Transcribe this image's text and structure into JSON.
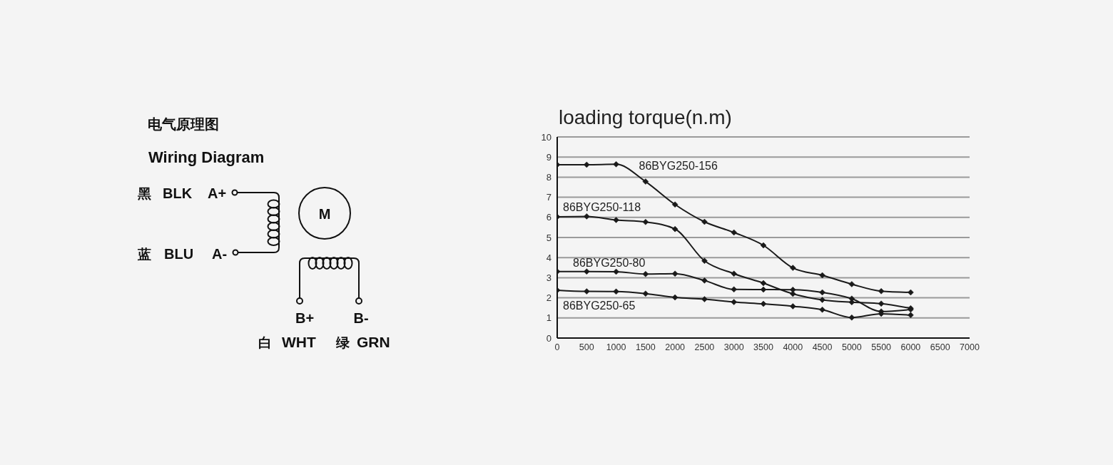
{
  "chart_data": [
    {
      "type": "other",
      "title": "电气原理图",
      "subtitle": "Wiring Diagram",
      "annotations": [
        "黑",
        "BLK",
        "A+",
        "蓝",
        "BLU",
        "A-",
        "M",
        "B+",
        "B-",
        "白",
        "WHT",
        "绿",
        "GRN"
      ]
    },
    {
      "type": "line",
      "title": "loading torque(n.m)",
      "x": [
        0,
        500,
        1000,
        1500,
        2000,
        2500,
        3000,
        3500,
        4000,
        4500,
        5000,
        5500,
        6000
      ],
      "xlim": [
        0,
        7000
      ],
      "xticks": [
        0,
        500,
        1000,
        1500,
        2000,
        2500,
        3000,
        3500,
        4000,
        4500,
        5000,
        5500,
        6000,
        6500,
        7000
      ],
      "ylim": [
        0,
        10
      ],
      "yticks": [
        0,
        1,
        2,
        3,
        4,
        5,
        6,
        7,
        8,
        9,
        10
      ],
      "grid": "y",
      "marker": "diamond",
      "series": [
        {
          "name": "86BYG250-156",
          "color": "#1a1a1a",
          "values": [
            8.62,
            8.62,
            8.64,
            7.78,
            6.64,
            5.78,
            5.25,
            4.61,
            3.49,
            3.12,
            2.68,
            2.33,
            2.27
          ]
        },
        {
          "name": "86BYG250-118",
          "color": "#1a1a1a",
          "values": [
            6.03,
            6.05,
            5.87,
            5.77,
            5.42,
            3.84,
            3.2,
            2.73,
            2.2,
            1.9,
            1.78,
            1.71,
            1.48
          ]
        },
        {
          "name": "86BYG250-80",
          "color": "#1a1a1a",
          "values": [
            3.31,
            3.31,
            3.3,
            3.18,
            3.2,
            2.86,
            2.42,
            2.41,
            2.4,
            2.27,
            1.96,
            1.32,
            1.42
          ]
        },
        {
          "name": "86BYG250-65",
          "color": "#1a1a1a",
          "values": [
            2.38,
            2.32,
            2.31,
            2.21,
            2.02,
            1.93,
            1.79,
            1.7,
            1.58,
            1.41,
            1.02,
            1.21,
            1.14
          ]
        }
      ]
    }
  ]
}
